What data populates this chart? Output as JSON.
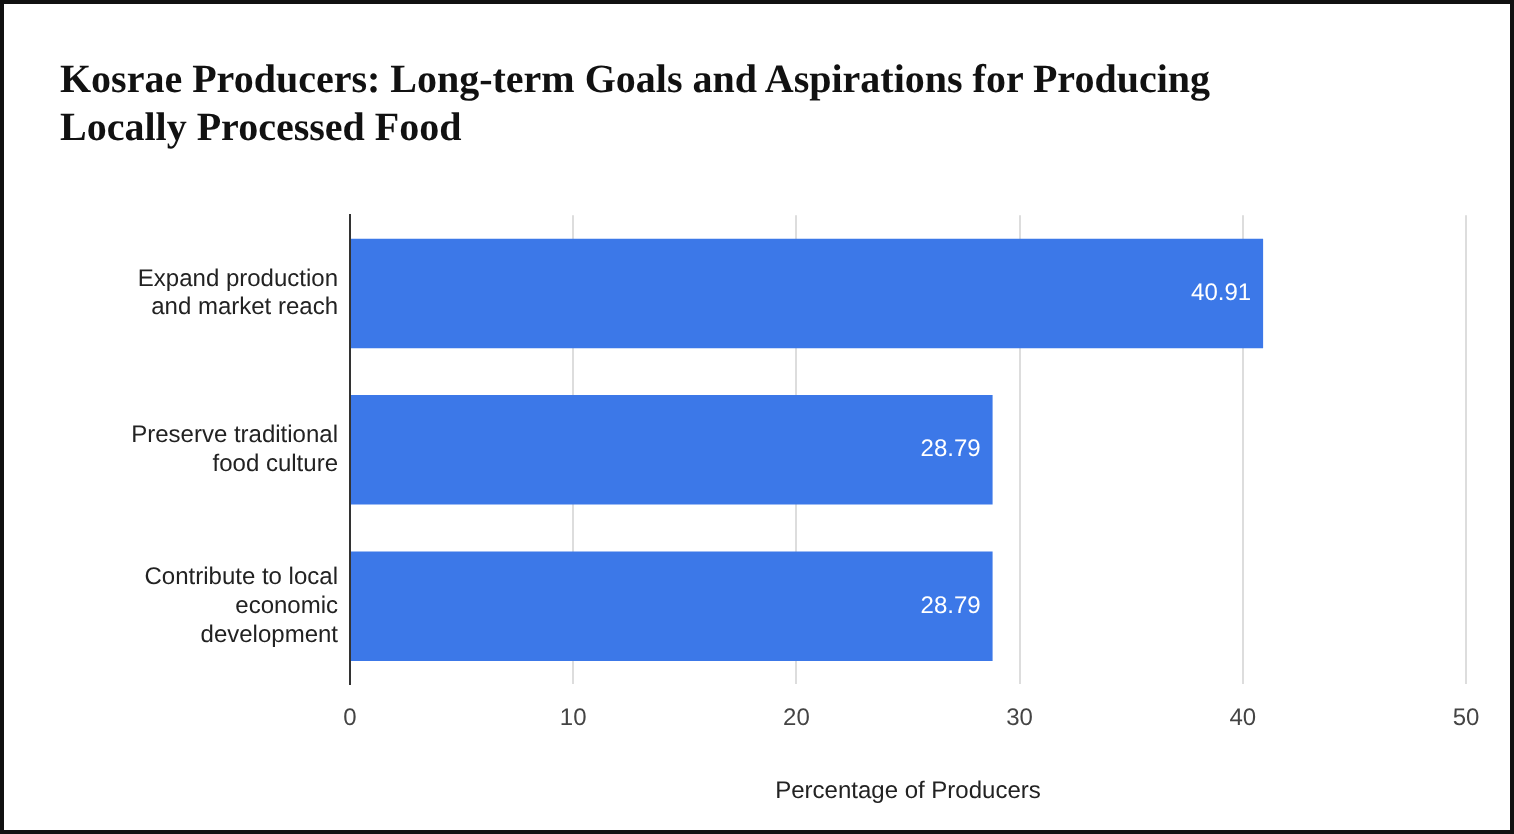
{
  "chart_data": {
    "type": "bar",
    "orientation": "horizontal",
    "title": "Kosrae Producers: Long-term Goals and Aspirations for Producing Locally Processed Food",
    "xlabel": "Percentage of Producers",
    "categories": [
      "Expand production and market reach",
      "Preserve traditional food culture",
      "Contribute to local economic development"
    ],
    "values": [
      40.91,
      28.79,
      28.79
    ],
    "color": "#3c78e8",
    "xlim": [
      0,
      50
    ],
    "xticks": [
      0,
      10,
      20,
      30,
      40,
      50
    ],
    "grid": "x",
    "data_labels": true,
    "legend": false
  }
}
